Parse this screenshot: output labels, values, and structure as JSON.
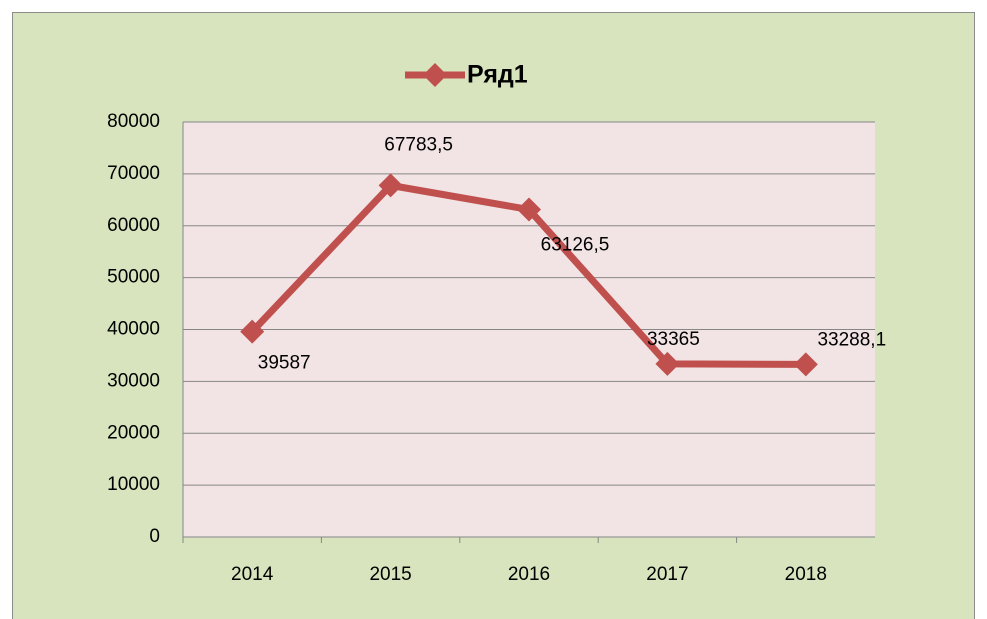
{
  "chart_data": {
    "type": "line",
    "categories": [
      "2014",
      "2015",
      "2016",
      "2017",
      "2018"
    ],
    "series": [
      {
        "name": "Ряд1",
        "color": "#c0504d",
        "values": [
          39587,
          67783.5,
          63126.5,
          33365,
          33288.1
        ],
        "value_labels": [
          "39587",
          "67783,5",
          "63126,5",
          "33365",
          "33288,1"
        ]
      }
    ],
    "ylim": [
      0,
      80000
    ],
    "yticks": [
      0,
      10000,
      20000,
      30000,
      40000,
      50000,
      60000,
      70000,
      80000
    ],
    "grid": true,
    "legend": "top"
  }
}
